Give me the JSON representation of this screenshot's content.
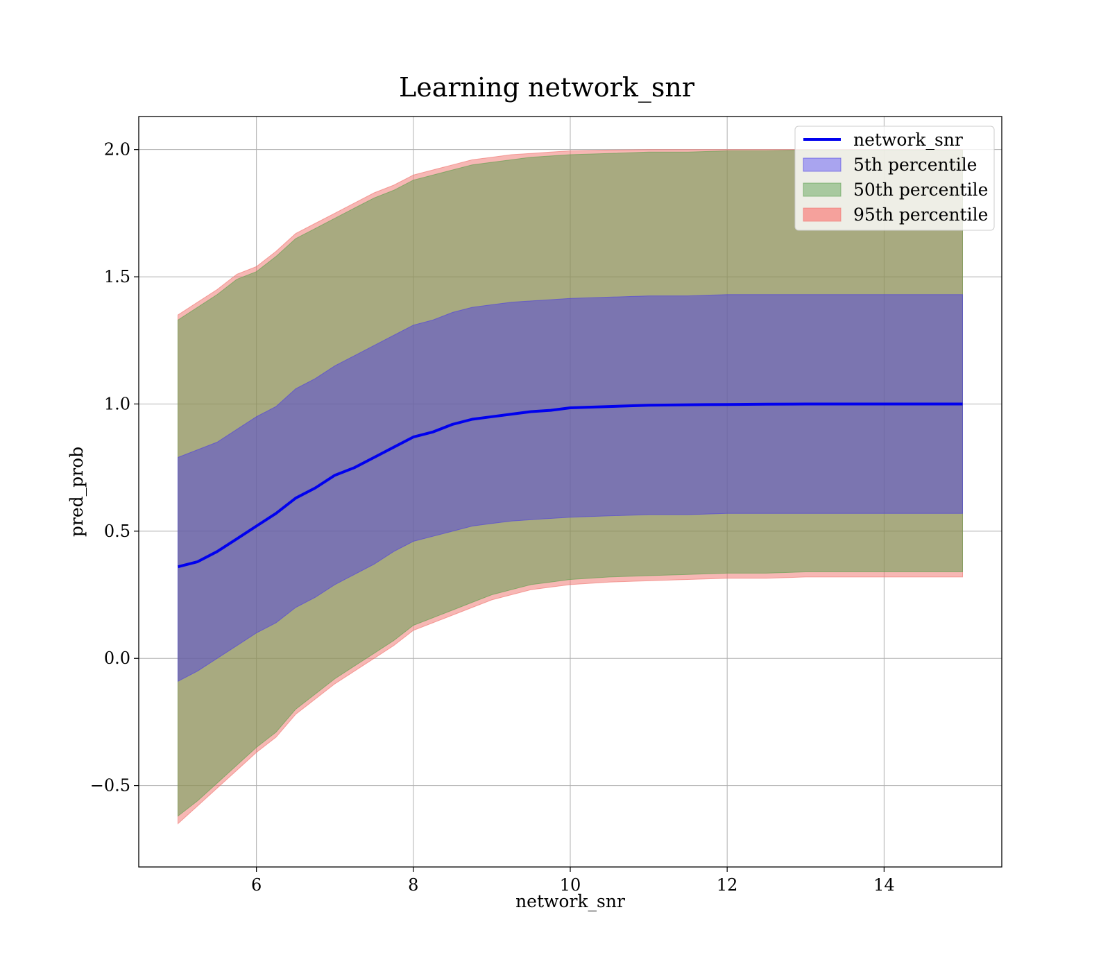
{
  "chart_data": {
    "type": "area",
    "title": "Learning network_snr",
    "xlabel": "network_snr",
    "ylabel": "pred_prob",
    "xlim": [
      4.5,
      15.5
    ],
    "ylim": [
      -0.82,
      2.13
    ],
    "x_ticks": [
      6,
      8,
      10,
      12,
      14
    ],
    "y_ticks": [
      -0.5,
      0.0,
      0.5,
      1.0,
      1.5,
      2.0
    ],
    "x_tick_labels": [
      "6",
      "8",
      "10",
      "12",
      "14"
    ],
    "y_tick_labels": [
      "−0.5",
      "0.0",
      "0.5",
      "1.0",
      "1.5",
      "2.0"
    ],
    "grid": true,
    "legend_position": "top-right",
    "x": [
      5.0,
      5.25,
      5.5,
      5.75,
      6.0,
      6.25,
      6.5,
      6.75,
      7.0,
      7.25,
      7.5,
      7.75,
      8.0,
      8.25,
      8.5,
      8.75,
      9.0,
      9.25,
      9.5,
      9.75,
      10.0,
      10.5,
      11.0,
      11.5,
      12.0,
      12.5,
      13.0,
      13.5,
      14.0,
      14.5,
      15.0
    ],
    "series": [
      {
        "name": "network_snr",
        "kind": "line",
        "color": "#0000ee",
        "values": [
          0.36,
          0.38,
          0.42,
          0.47,
          0.52,
          0.57,
          0.63,
          0.67,
          0.72,
          0.75,
          0.79,
          0.83,
          0.87,
          0.89,
          0.92,
          0.94,
          0.95,
          0.96,
          0.97,
          0.975,
          0.985,
          0.99,
          0.995,
          0.997,
          0.998,
          0.999,
          1.0,
          1.0,
          1.0,
          1.0,
          1.0
        ]
      },
      {
        "name": "5th percentile",
        "kind": "band",
        "color": "#4d40e0",
        "lower": [
          -0.09,
          -0.05,
          0.0,
          0.05,
          0.1,
          0.14,
          0.2,
          0.24,
          0.29,
          0.33,
          0.37,
          0.42,
          0.46,
          0.48,
          0.5,
          0.52,
          0.53,
          0.54,
          0.545,
          0.55,
          0.555,
          0.56,
          0.565,
          0.565,
          0.57,
          0.57,
          0.57,
          0.57,
          0.57,
          0.57,
          0.57
        ],
        "upper": [
          0.79,
          0.82,
          0.85,
          0.9,
          0.95,
          0.99,
          1.06,
          1.1,
          1.15,
          1.19,
          1.23,
          1.27,
          1.31,
          1.33,
          1.36,
          1.38,
          1.39,
          1.4,
          1.405,
          1.41,
          1.415,
          1.42,
          1.425,
          1.425,
          1.43,
          1.43,
          1.43,
          1.43,
          1.43,
          1.43,
          1.43
        ]
      },
      {
        "name": "50th percentile",
        "kind": "band",
        "color": "#5a9e4b",
        "lower": [
          -0.62,
          -0.56,
          -0.49,
          -0.42,
          -0.35,
          -0.29,
          -0.2,
          -0.14,
          -0.08,
          -0.03,
          0.02,
          0.07,
          0.13,
          0.16,
          0.19,
          0.22,
          0.25,
          0.27,
          0.29,
          0.3,
          0.31,
          0.32,
          0.325,
          0.33,
          0.335,
          0.335,
          0.34,
          0.34,
          0.34,
          0.34,
          0.34
        ],
        "upper": [
          1.33,
          1.38,
          1.43,
          1.49,
          1.52,
          1.58,
          1.65,
          1.69,
          1.73,
          1.77,
          1.81,
          1.84,
          1.88,
          1.9,
          1.92,
          1.94,
          1.95,
          1.96,
          1.97,
          1.975,
          1.98,
          1.985,
          1.99,
          1.99,
          1.995,
          1.995,
          1.998,
          1.998,
          1.998,
          1.998,
          1.998
        ]
      },
      {
        "name": "95th percentile",
        "kind": "band",
        "color": "#f0706a",
        "lower": [
          -0.65,
          -0.58,
          -0.51,
          -0.44,
          -0.37,
          -0.31,
          -0.22,
          -0.16,
          -0.1,
          -0.05,
          0.0,
          0.05,
          0.11,
          0.14,
          0.17,
          0.2,
          0.23,
          0.25,
          0.27,
          0.28,
          0.29,
          0.3,
          0.305,
          0.31,
          0.315,
          0.315,
          0.32,
          0.32,
          0.32,
          0.32,
          0.32
        ],
        "upper": [
          1.35,
          1.4,
          1.45,
          1.51,
          1.54,
          1.6,
          1.67,
          1.71,
          1.75,
          1.79,
          1.83,
          1.86,
          1.9,
          1.92,
          1.94,
          1.96,
          1.97,
          1.98,
          1.985,
          1.99,
          1.995,
          1.998,
          2.0,
          2.0,
          2.0,
          2.0,
          2.0,
          2.0,
          2.0,
          2.0,
          2.0
        ]
      }
    ]
  },
  "legend": {
    "items": [
      {
        "label": "network_snr",
        "kind": "line",
        "color": "#0000ee"
      },
      {
        "label": "5th percentile",
        "kind": "patch",
        "color": "#a9a4ef"
      },
      {
        "label": "50th percentile",
        "kind": "patch",
        "color": "#a8c99f"
      },
      {
        "label": "95th percentile",
        "kind": "patch",
        "color": "#f5a19c"
      }
    ]
  }
}
